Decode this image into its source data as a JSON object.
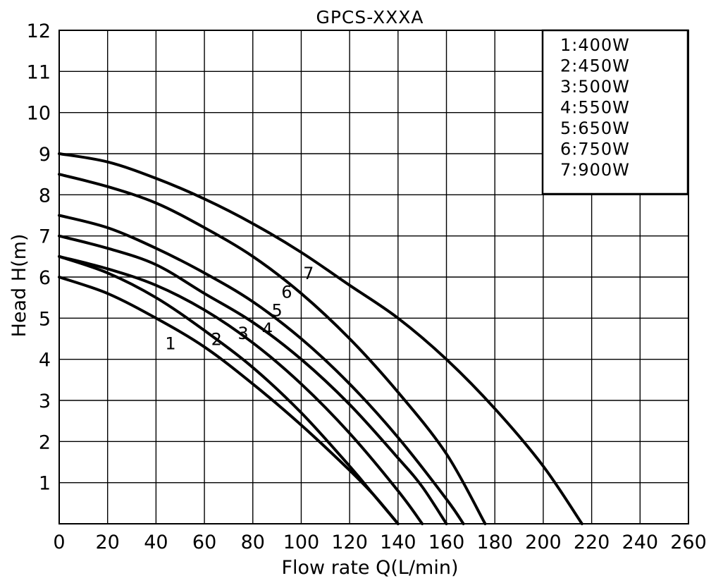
{
  "chart_data": {
    "type": "line",
    "title": "GPCS-XXXA",
    "xlabel": "Flow rate Q(L/min)",
    "ylabel": "Head H(m)",
    "xlim": [
      0,
      260
    ],
    "ylim": [
      0,
      12
    ],
    "xticks": [
      "0",
      "20",
      "40",
      "60",
      "80",
      "100",
      "120",
      "140",
      "160",
      "180",
      "200",
      "220",
      "240",
      "260"
    ],
    "yticks": [
      "1",
      "2",
      "3",
      "4",
      "5",
      "6",
      "7",
      "8",
      "9",
      "10",
      "11",
      "12"
    ],
    "grid": true,
    "legend_position": "top-right",
    "legend": [
      "1:400W",
      "2:450W",
      "3:500W",
      "4:550W",
      "5:650W",
      "6:750W",
      "7:900W"
    ],
    "series": [
      {
        "label": "1",
        "x": [
          0,
          20,
          40,
          60,
          80,
          100,
          120,
          130,
          140
        ],
        "y": [
          6.0,
          5.6,
          5.0,
          4.3,
          3.4,
          2.4,
          1.3,
          0.7,
          0.0
        ],
        "label_at": [
          46,
          4.4
        ]
      },
      {
        "label": "2",
        "x": [
          0,
          20,
          40,
          60,
          80,
          100,
          120,
          130,
          140
        ],
        "y": [
          6.5,
          6.1,
          5.5,
          4.7,
          3.8,
          2.7,
          1.4,
          0.7,
          0.0
        ],
        "label_at": [
          65,
          4.5
        ]
      },
      {
        "label": "3",
        "x": [
          0,
          20,
          40,
          60,
          80,
          100,
          120,
          140,
          150
        ],
        "y": [
          6.5,
          6.2,
          5.8,
          5.2,
          4.4,
          3.4,
          2.2,
          0.8,
          0.0
        ],
        "label_at": [
          76,
          4.65
        ]
      },
      {
        "label": "4",
        "x": [
          0,
          20,
          40,
          60,
          80,
          100,
          120,
          140,
          150,
          160
        ],
        "y": [
          7.0,
          6.7,
          6.3,
          5.6,
          4.9,
          4.0,
          2.9,
          1.6,
          0.9,
          0.0
        ],
        "label_at": [
          86,
          4.75
        ]
      },
      {
        "label": "5",
        "x": [
          0,
          20,
          40,
          60,
          80,
          100,
          120,
          140,
          160,
          167
        ],
        "y": [
          7.5,
          7.2,
          6.7,
          6.1,
          5.4,
          4.5,
          3.4,
          2.1,
          0.6,
          0.0
        ],
        "label_at": [
          90,
          5.2
        ]
      },
      {
        "label": "6",
        "x": [
          0,
          20,
          40,
          60,
          80,
          100,
          120,
          140,
          160,
          176
        ],
        "y": [
          8.5,
          8.2,
          7.8,
          7.2,
          6.5,
          5.6,
          4.5,
          3.2,
          1.7,
          0.0
        ],
        "label_at": [
          94,
          5.65
        ]
      },
      {
        "label": "7",
        "x": [
          0,
          20,
          40,
          60,
          80,
          100,
          120,
          140,
          160,
          180,
          200,
          216
        ],
        "y": [
          9.0,
          8.8,
          8.4,
          7.9,
          7.3,
          6.6,
          5.8,
          5.0,
          4.0,
          2.8,
          1.4,
          0.0
        ],
        "label_at": [
          103,
          6.1
        ]
      }
    ]
  }
}
